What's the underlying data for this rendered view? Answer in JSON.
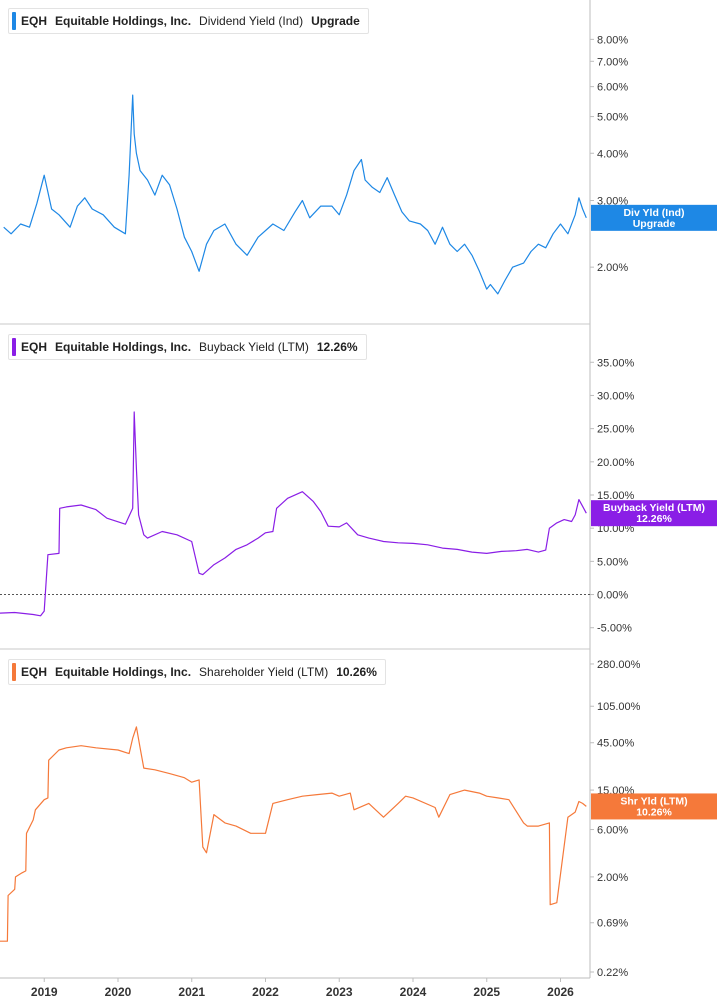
{
  "panels": [
    {
      "ticker": "EQH",
      "company": "Equitable Holdings, Inc.",
      "metric": "Dividend Yield (Ind)",
      "value": "Upgrade",
      "color": "#1e88e5",
      "flag_line1": "Div Yld (Ind)",
      "flag_line2": "Upgrade"
    },
    {
      "ticker": "EQH",
      "company": "Equitable Holdings, Inc.",
      "metric": "Buyback Yield (LTM)",
      "value": "12.26%",
      "color": "#8a1ee6",
      "flag_line1": "Buyback Yield (LTM)",
      "flag_line2": "12.26%"
    },
    {
      "ticker": "EQH",
      "company": "Equitable Holdings, Inc.",
      "metric": "Shareholder Yield (LTM)",
      "value": "10.26%",
      "color": "#f5793a",
      "flag_line1": "Shr Yld (LTM)",
      "flag_line2": "10.26%"
    }
  ],
  "chart_data": [
    {
      "type": "line",
      "title": "EQH Equitable Holdings, Inc. Dividend Yield (Ind) Upgrade",
      "scale": "log",
      "y_ticks": [
        "8.00%",
        "7.00%",
        "6.00%",
        "5.00%",
        "4.00%",
        "3.00%",
        "2.00%"
      ],
      "y_tick_values": [
        8,
        7,
        6,
        5,
        4,
        3,
        2
      ],
      "ylim": [
        1.45,
        9.0
      ],
      "xlim": [
        2018.4,
        2026.4
      ],
      "series": [
        {
          "name": "Dividend Yield (Ind)",
          "color": "#1e88e5",
          "x": [
            2018.45,
            2018.55,
            2018.68,
            2018.8,
            2018.9,
            2019.0,
            2019.1,
            2019.2,
            2019.35,
            2019.45,
            2019.55,
            2019.65,
            2019.8,
            2019.95,
            2020.1,
            2020.15,
            2020.2,
            2020.22,
            2020.25,
            2020.3,
            2020.4,
            2020.5,
            2020.6,
            2020.7,
            2020.8,
            2020.9,
            2021.0,
            2021.1,
            2021.2,
            2021.3,
            2021.45,
            2021.6,
            2021.75,
            2021.9,
            2022.1,
            2022.25,
            2022.4,
            2022.5,
            2022.6,
            2022.75,
            2022.9,
            2023.0,
            2023.1,
            2023.2,
            2023.3,
            2023.35,
            2023.45,
            2023.55,
            2023.65,
            2023.75,
            2023.85,
            2023.95,
            2024.1,
            2024.2,
            2024.3,
            2024.4,
            2024.5,
            2024.6,
            2024.7,
            2024.8,
            2024.9,
            2025.0,
            2025.05,
            2025.15,
            2025.25,
            2025.35,
            2025.5,
            2025.6,
            2025.7,
            2025.8,
            2025.9,
            2026.0,
            2026.1,
            2026.2,
            2026.25,
            2026.3,
            2026.35
          ],
          "values": [
            2.55,
            2.45,
            2.6,
            2.55,
            2.95,
            3.5,
            2.85,
            2.75,
            2.55,
            2.9,
            3.05,
            2.85,
            2.75,
            2.55,
            2.45,
            3.5,
            5.7,
            4.5,
            4.0,
            3.6,
            3.4,
            3.1,
            3.5,
            3.3,
            2.85,
            2.4,
            2.2,
            1.95,
            2.3,
            2.5,
            2.6,
            2.3,
            2.15,
            2.4,
            2.6,
            2.5,
            2.8,
            3.0,
            2.7,
            2.9,
            2.9,
            2.75,
            3.1,
            3.6,
            3.85,
            3.4,
            3.25,
            3.15,
            3.45,
            3.1,
            2.8,
            2.65,
            2.6,
            2.5,
            2.3,
            2.55,
            2.3,
            2.2,
            2.3,
            2.15,
            1.95,
            1.75,
            1.8,
            1.7,
            1.85,
            2.0,
            2.05,
            2.2,
            2.3,
            2.25,
            2.45,
            2.6,
            2.45,
            2.75,
            3.05,
            2.85,
            2.7
          ]
        }
      ]
    },
    {
      "type": "line",
      "title": "EQH Equitable Holdings, Inc. Buyback Yield (LTM) 12.26%",
      "scale": "linear",
      "y_ticks": [
        "35.00%",
        "30.00%",
        "25.00%",
        "20.00%",
        "15.00%",
        "10.00%",
        "5.00%",
        "0.00%",
        "-5.00%"
      ],
      "y_tick_values": [
        35,
        30,
        25,
        20,
        15,
        10,
        5,
        0,
        -5
      ],
      "ylim": [
        -7,
        37
      ],
      "xlim": [
        2018.4,
        2026.4
      ],
      "series": [
        {
          "name": "Buyback Yield (LTM)",
          "color": "#8a1ee6",
          "x": [
            2018.4,
            2018.6,
            2018.85,
            2018.95,
            2019.0,
            2019.05,
            2019.2,
            2019.21,
            2019.3,
            2019.5,
            2019.7,
            2019.85,
            2020.1,
            2020.2,
            2020.22,
            2020.25,
            2020.28,
            2020.35,
            2020.4,
            2020.6,
            2020.8,
            2021.0,
            2021.1,
            2021.15,
            2021.3,
            2021.45,
            2021.6,
            2021.75,
            2021.9,
            2022.0,
            2022.1,
            2022.15,
            2022.3,
            2022.5,
            2022.65,
            2022.75,
            2022.85,
            2023.0,
            2023.1,
            2023.25,
            2023.4,
            2023.6,
            2023.8,
            2024.0,
            2024.2,
            2024.4,
            2024.6,
            2024.8,
            2025.0,
            2025.2,
            2025.4,
            2025.55,
            2025.7,
            2025.8,
            2025.85,
            2025.95,
            2026.05,
            2026.15,
            2026.2,
            2026.25,
            2026.3,
            2026.35
          ],
          "values": [
            -2.8,
            -2.7,
            -3.0,
            -3.2,
            -2.5,
            6.0,
            6.2,
            13.0,
            13.2,
            13.5,
            12.8,
            11.5,
            10.6,
            13.0,
            27.5,
            19.0,
            12.0,
            9.0,
            8.5,
            9.5,
            9.0,
            8.0,
            3.2,
            3.0,
            4.5,
            5.5,
            6.8,
            7.5,
            8.5,
            9.3,
            9.5,
            13.0,
            14.5,
            15.5,
            14.0,
            12.5,
            10.3,
            10.2,
            10.8,
            9.0,
            8.5,
            8.0,
            7.8,
            7.7,
            7.5,
            7.0,
            6.8,
            6.4,
            6.2,
            6.5,
            6.6,
            6.8,
            6.4,
            6.7,
            10.0,
            10.8,
            11.3,
            11.0,
            12.0,
            14.3,
            13.3,
            12.26
          ]
        }
      ]
    },
    {
      "type": "line",
      "title": "EQH Equitable Holdings, Inc. Shareholder Yield (LTM) 10.26%",
      "scale": "log",
      "y_ticks": [
        "280.00%",
        "105.00%",
        "45.00%",
        "15.00%",
        "6.00%",
        "2.00%",
        "0.69%",
        "0.22%"
      ],
      "y_tick_values": [
        280,
        105,
        45,
        15,
        6,
        2,
        0.69,
        0.22
      ],
      "ylim": [
        0.22,
        300
      ],
      "xlim": [
        2018.4,
        2026.4
      ],
      "series": [
        {
          "name": "Shareholder Yield (LTM)",
          "color": "#f5793a",
          "x": [
            2018.4,
            2018.5,
            2018.51,
            2018.6,
            2018.61,
            2018.7,
            2018.75,
            2018.76,
            2018.85,
            2018.88,
            2019.0,
            2019.05,
            2019.06,
            2019.2,
            2019.3,
            2019.5,
            2019.7,
            2020.0,
            2020.15,
            2020.2,
            2020.25,
            2020.3,
            2020.35,
            2020.5,
            2020.7,
            2020.9,
            2021.0,
            2021.1,
            2021.15,
            2021.2,
            2021.3,
            2021.45,
            2021.6,
            2021.8,
            2022.0,
            2022.1,
            2022.3,
            2022.5,
            2022.7,
            2022.9,
            2023.0,
            2023.15,
            2023.2,
            2023.4,
            2023.6,
            2023.8,
            2023.9,
            2024.0,
            2024.3,
            2024.35,
            2024.5,
            2024.7,
            2024.9,
            2025.0,
            2025.15,
            2025.3,
            2025.5,
            2025.55,
            2025.7,
            2025.85,
            2025.86,
            2025.95,
            2026.1,
            2026.2,
            2026.25,
            2026.3,
            2026.35
          ],
          "values": [
            0.45,
            0.45,
            1.3,
            1.5,
            2.0,
            2.2,
            2.3,
            5.5,
            7.5,
            9.5,
            12.0,
            12.5,
            30.0,
            38.0,
            40.0,
            42.0,
            40.0,
            38.0,
            35.0,
            50.0,
            65.0,
            40.0,
            25.0,
            24.0,
            22.0,
            20.0,
            18.0,
            19.0,
            4.0,
            3.5,
            8.5,
            7.0,
            6.5,
            5.5,
            5.5,
            11.0,
            12.0,
            13.0,
            13.5,
            14.0,
            13.0,
            14.0,
            9.5,
            11.0,
            8.0,
            11.0,
            13.0,
            12.5,
            10.0,
            8.0,
            13.5,
            15.0,
            14.0,
            13.0,
            12.5,
            12.0,
            7.0,
            6.5,
            6.5,
            7.0,
            1.05,
            1.1,
            8.0,
            9.0,
            11.5,
            11.0,
            10.26
          ]
        }
      ]
    }
  ],
  "x_axis": {
    "ticks": [
      "2019",
      "2020",
      "2021",
      "2022",
      "2023",
      "2024",
      "2025",
      "2026"
    ],
    "tick_values": [
      2019,
      2020,
      2021,
      2022,
      2023,
      2024,
      2025,
      2026
    ]
  }
}
